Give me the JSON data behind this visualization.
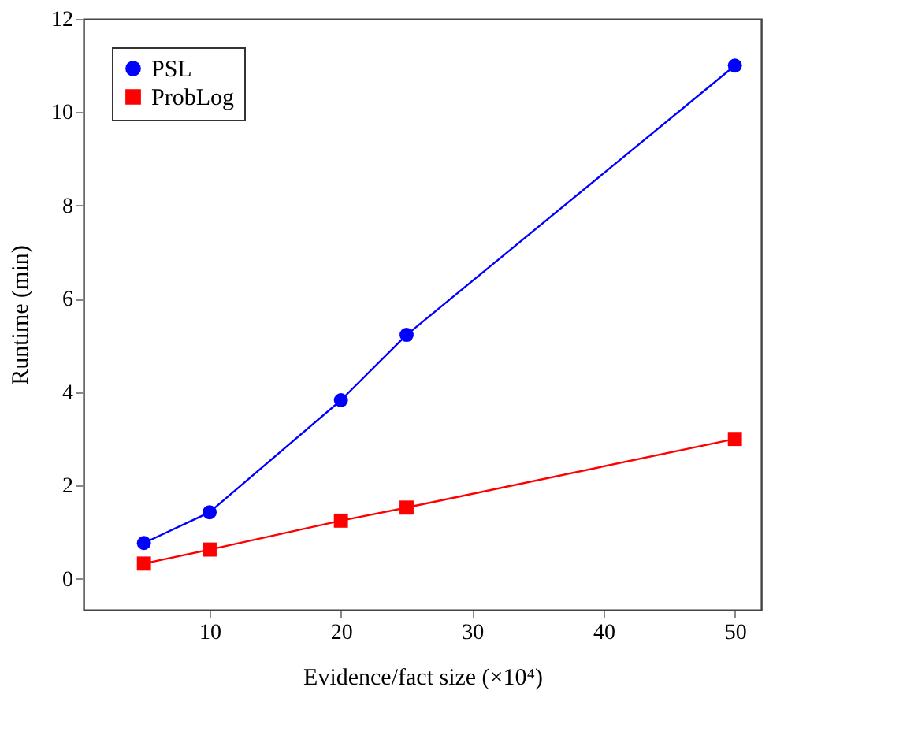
{
  "chart_data": {
    "type": "line",
    "xlabel": "Evidence/fact size (×10⁴)",
    "ylabel": "Runtime (min)",
    "x": [
      5,
      10,
      20,
      25,
      50
    ],
    "series": [
      {
        "name": "PSL",
        "color": "#0000ff",
        "marker": "circle",
        "values": [
          0.77,
          1.43,
          3.83,
          5.23,
          11.0
        ]
      },
      {
        "name": "ProbLog",
        "color": "#ff0000",
        "marker": "square",
        "values": [
          0.33,
          0.63,
          1.25,
          1.53,
          3.0
        ]
      }
    ],
    "xlim": [
      0.4,
      52
    ],
    "ylim": [
      -0.66,
      12
    ],
    "xticks": [
      10,
      20,
      30,
      40,
      50
    ],
    "yticks": [
      0,
      2,
      4,
      6,
      8,
      10,
      12
    ],
    "grid": false,
    "legend": "top left",
    "line_style": "solid"
  }
}
